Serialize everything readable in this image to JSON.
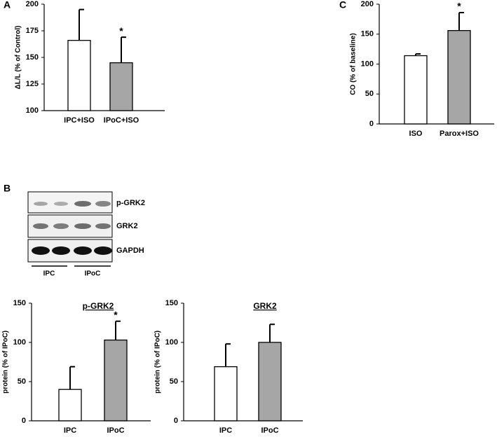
{
  "chart_data": [
    {
      "type": "bar",
      "panel_label": "A",
      "y_label": "ΔL/L (% of Control)",
      "categories": [
        "IPC+ISO",
        "IPoC+ISO"
      ],
      "values": [
        166,
        145
      ],
      "errors": [
        29,
        24
      ],
      "colors": [
        "#ffffff",
        "#a6a6a6"
      ],
      "annotation": "*",
      "ylim": [
        100,
        200
      ],
      "yticks": [
        100,
        125,
        150,
        175,
        200
      ]
    },
    {
      "type": "bar",
      "panel_label": "C",
      "y_label": "CO (% of baseline)",
      "categories": [
        "ISO",
        "Parox+ISO"
      ],
      "values": [
        114,
        156
      ],
      "errors": [
        3,
        30
      ],
      "colors": [
        "#ffffff",
        "#a6a6a6"
      ],
      "annotation": "*",
      "ylim": [
        0,
        200
      ],
      "yticks": [
        0,
        50,
        100,
        150,
        200
      ]
    },
    {
      "type": "bar",
      "title": "p-GRK2",
      "y_label": "protein (% of IPoC)",
      "categories": [
        "IPC",
        "IPoC"
      ],
      "values": [
        40,
        103
      ],
      "errors": [
        29,
        24
      ],
      "colors": [
        "#ffffff",
        "#a6a6a6"
      ],
      "annotation": "*",
      "ylim": [
        0,
        150
      ],
      "yticks": [
        0,
        50,
        100,
        150
      ]
    },
    {
      "type": "bar",
      "title": "GRK2",
      "y_label": "protein (% of IPoC)",
      "categories": [
        "IPC",
        "IPoC"
      ],
      "values": [
        69,
        100
      ],
      "errors": [
        29,
        23
      ],
      "colors": [
        "#ffffff",
        "#a6a6a6"
      ],
      "ylim": [
        0,
        150
      ],
      "yticks": [
        0,
        50,
        100,
        150
      ]
    }
  ],
  "blot": {
    "panel_label": "B",
    "rows": [
      "p-GRK2",
      "GRK2",
      "GAPDH"
    ],
    "groups": [
      "IPC",
      "IPoC"
    ]
  }
}
